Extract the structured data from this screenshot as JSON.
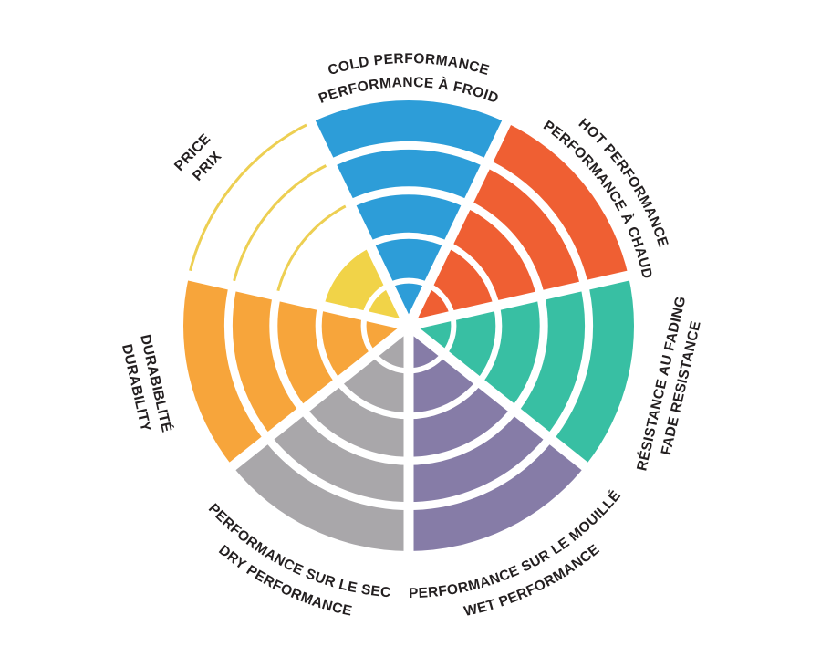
{
  "page": {
    "background": "#FFFFFF",
    "text_color": "#231F20"
  },
  "chart_data": {
    "type": "polar-sector-wheel",
    "description": "Seven-sector circular rating wheel with concentric rings; each sector filled to its rating level, unfilled rings of the price sector drawn as outline arcs",
    "rings_total": 5,
    "grid": "concentric white arc dividers and white radial separators",
    "legend_position": "labels around wheel, bilingual",
    "sectors": [
      {
        "id": "cold-performance",
        "lines": [
          "COLD PERFORMANCE",
          "PERFORMANCE À FROID"
        ],
        "value": 5,
        "color": "#2D9DD8"
      },
      {
        "id": "hot-performance",
        "lines": [
          "HOT PERFORMANCE",
          "PERFORMANCE À CHAUD"
        ],
        "value": 5,
        "color": "#EF5F33"
      },
      {
        "id": "fade-resistance",
        "lines": [
          "RÉSISTANCE AU FADING",
          "FADE RESISTANCE"
        ],
        "value": 5,
        "color": "#38BFA3"
      },
      {
        "id": "wet-performance",
        "lines": [
          "PERFORMANCE SUR LE MOUILLÉ",
          "WET PERFORMANCE"
        ],
        "value": 5,
        "color": "#867CA7"
      },
      {
        "id": "dry-performance",
        "lines": [
          "PERFORMANCE SUR LE SEC",
          "DRY PERFORMANCE"
        ],
        "value": 5,
        "color": "#A9A7AA"
      },
      {
        "id": "durability",
        "lines": [
          "DURABIBLITÉ",
          "DURABILITY"
        ],
        "value": 5,
        "color": "#F7A53B"
      },
      {
        "id": "price",
        "lines": [
          "PRICE",
          "PRIX"
        ],
        "value": 2,
        "color": "#F1D348",
        "unfilled_ring_style": "outline-arc",
        "outline_color": "#EDCF52"
      }
    ]
  }
}
